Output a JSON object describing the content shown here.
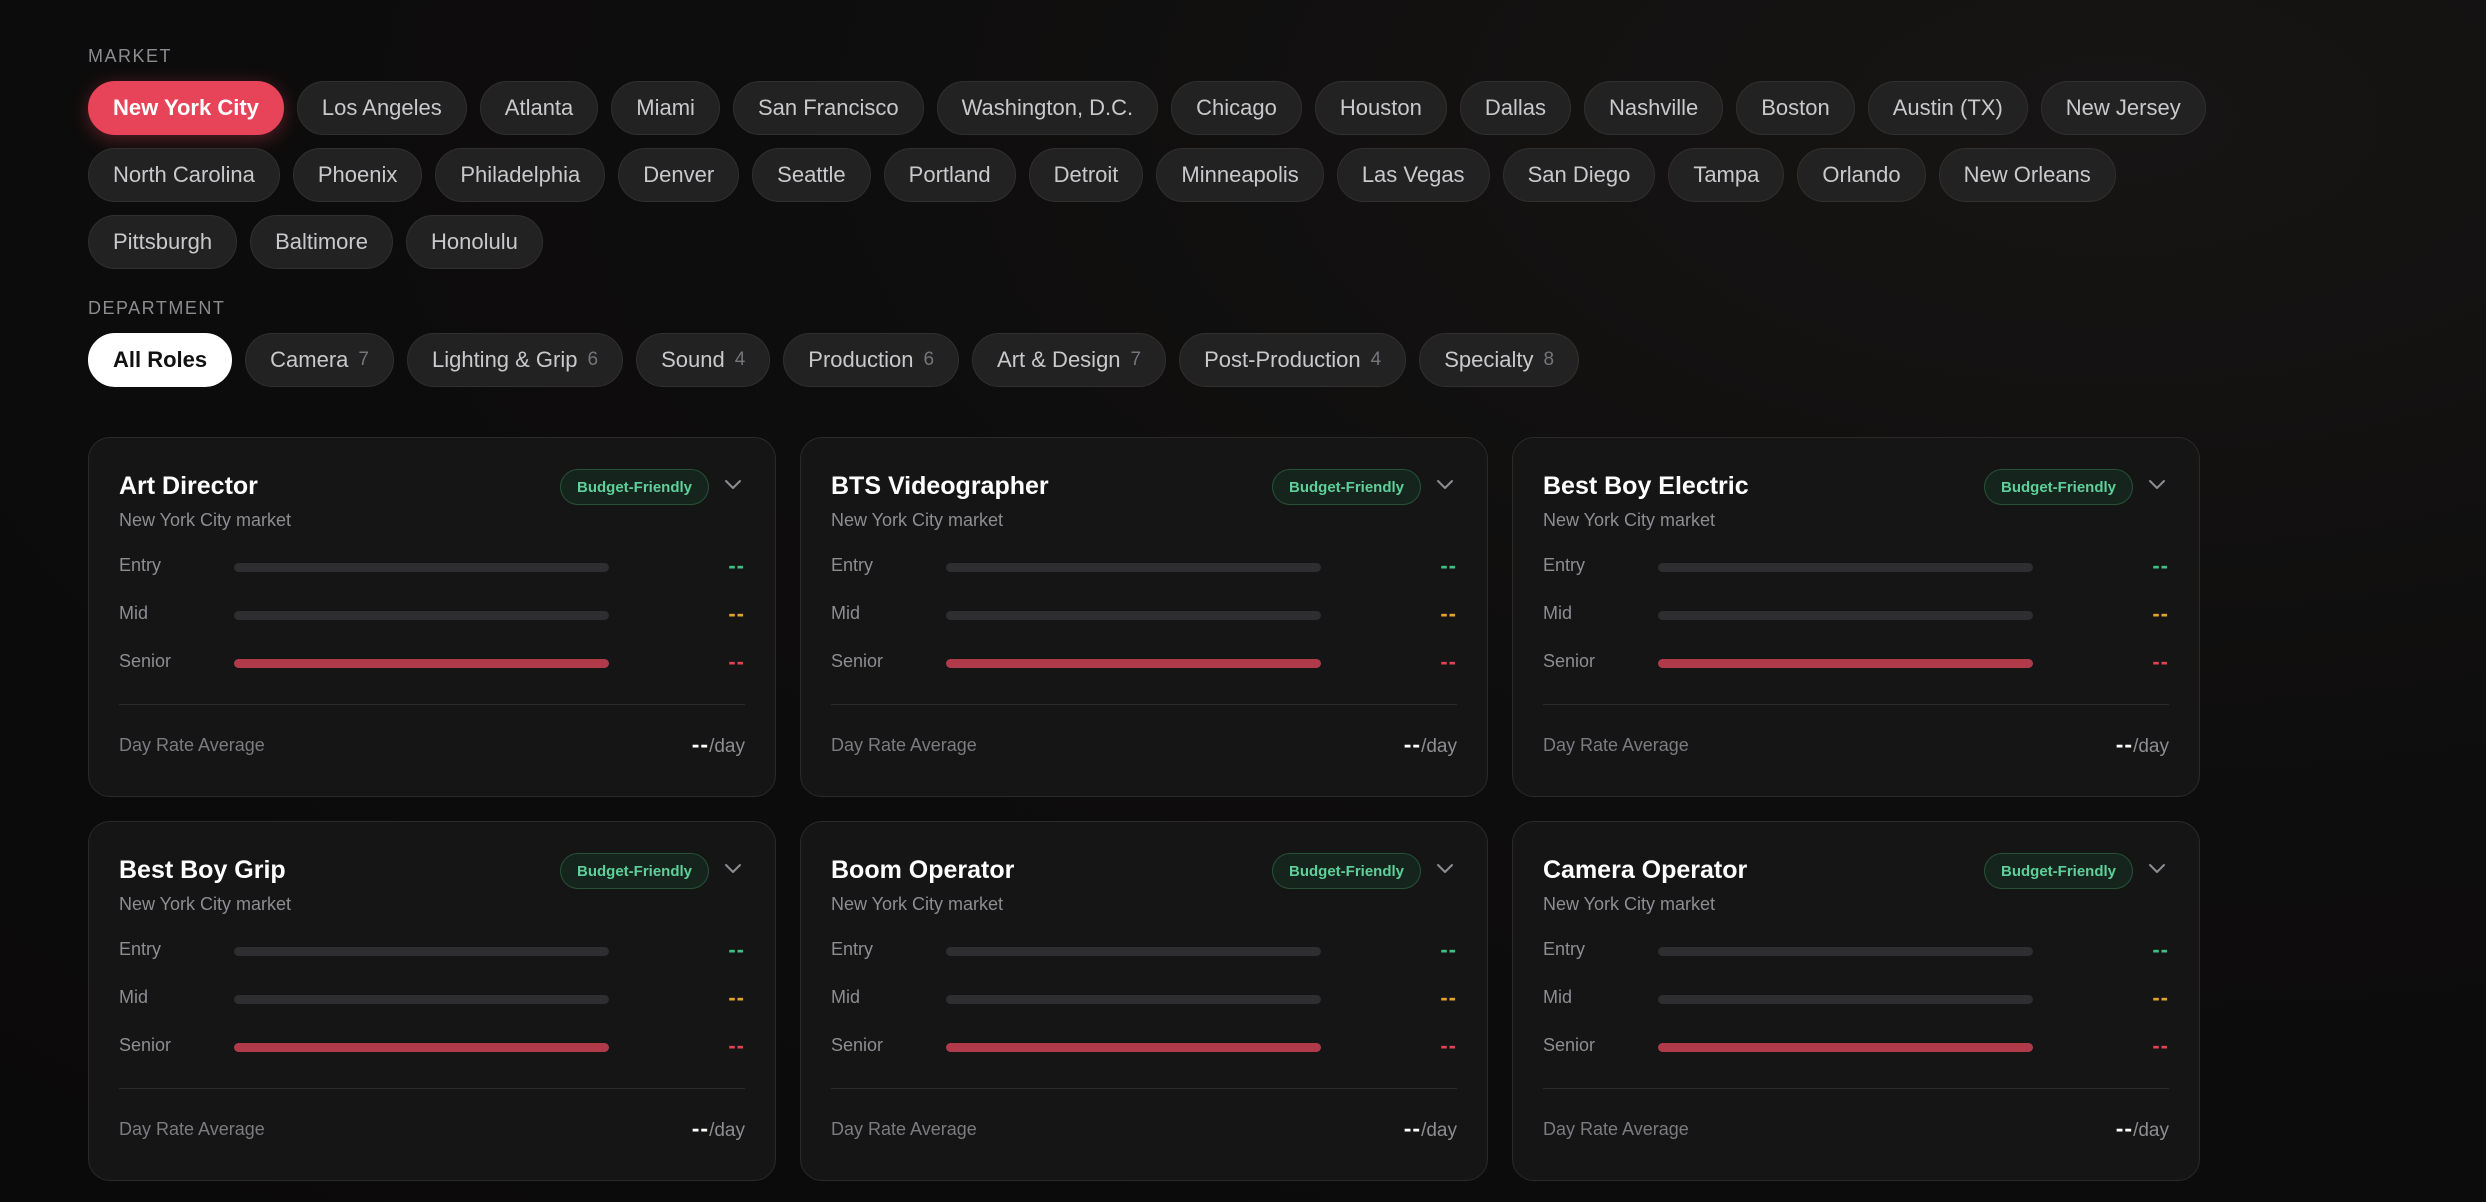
{
  "market": {
    "label": "MARKET",
    "selected": "New York City",
    "options": [
      "New York City",
      "Los Angeles",
      "Atlanta",
      "Miami",
      "San Francisco",
      "Washington, D.C.",
      "Chicago",
      "Houston",
      "Dallas",
      "Nashville",
      "Boston",
      "Austin (TX)",
      "New Jersey",
      "North Carolina",
      "Phoenix",
      "Philadelphia",
      "Denver",
      "Seattle",
      "Portland",
      "Detroit",
      "Minneapolis",
      "Las Vegas",
      "San Diego",
      "Tampa",
      "Orlando",
      "New Orleans",
      "Pittsburgh",
      "Baltimore",
      "Honolulu"
    ]
  },
  "department": {
    "label": "DEPARTMENT",
    "selected": "All Roles",
    "options": [
      {
        "label": "All Roles",
        "count": ""
      },
      {
        "label": "Camera",
        "count": "7"
      },
      {
        "label": "Lighting & Grip",
        "count": "6"
      },
      {
        "label": "Sound",
        "count": "4"
      },
      {
        "label": "Production",
        "count": "6"
      },
      {
        "label": "Art & Design",
        "count": "7"
      },
      {
        "label": "Post-Production",
        "count": "4"
      },
      {
        "label": "Specialty",
        "count": "8"
      }
    ]
  },
  "cards": [
    {
      "title": "Art Director",
      "subtitle": "New York City market",
      "badge": "Budget-Friendly",
      "entry": "--",
      "mid": "--",
      "senior": "--",
      "avg_label": "Day Rate Average",
      "avg_value": "--",
      "avg_unit": "/day"
    },
    {
      "title": "BTS Videographer",
      "subtitle": "New York City market",
      "badge": "Budget-Friendly",
      "entry": "--",
      "mid": "--",
      "senior": "--",
      "avg_label": "Day Rate Average",
      "avg_value": "--",
      "avg_unit": "/day"
    },
    {
      "title": "Best Boy Electric",
      "subtitle": "New York City market",
      "badge": "Budget-Friendly",
      "entry": "--",
      "mid": "--",
      "senior": "--",
      "avg_label": "Day Rate Average",
      "avg_value": "--",
      "avg_unit": "/day"
    },
    {
      "title": "Best Boy Grip",
      "subtitle": "New York City market",
      "badge": "Budget-Friendly",
      "entry": "--",
      "mid": "--",
      "senior": "--",
      "avg_label": "Day Rate Average",
      "avg_value": "--",
      "avg_unit": "/day"
    },
    {
      "title": "Boom Operator",
      "subtitle": "New York City market",
      "badge": "Budget-Friendly",
      "entry": "--",
      "mid": "--",
      "senior": "--",
      "avg_label": "Day Rate Average",
      "avg_value": "--",
      "avg_unit": "/day"
    },
    {
      "title": "Camera Operator",
      "subtitle": "New York City market",
      "badge": "Budget-Friendly",
      "entry": "--",
      "mid": "--",
      "senior": "--",
      "avg_label": "Day Rate Average",
      "avg_value": "--",
      "avg_unit": "/day"
    }
  ],
  "levels": {
    "entry": "Entry",
    "mid": "Mid",
    "senior": "Senior"
  },
  "colors": {
    "accent": "#e7445a",
    "entry": "#3fbf86",
    "mid": "#e0a52a",
    "senior": "#e0434f",
    "badge": "#5fd09a"
  }
}
